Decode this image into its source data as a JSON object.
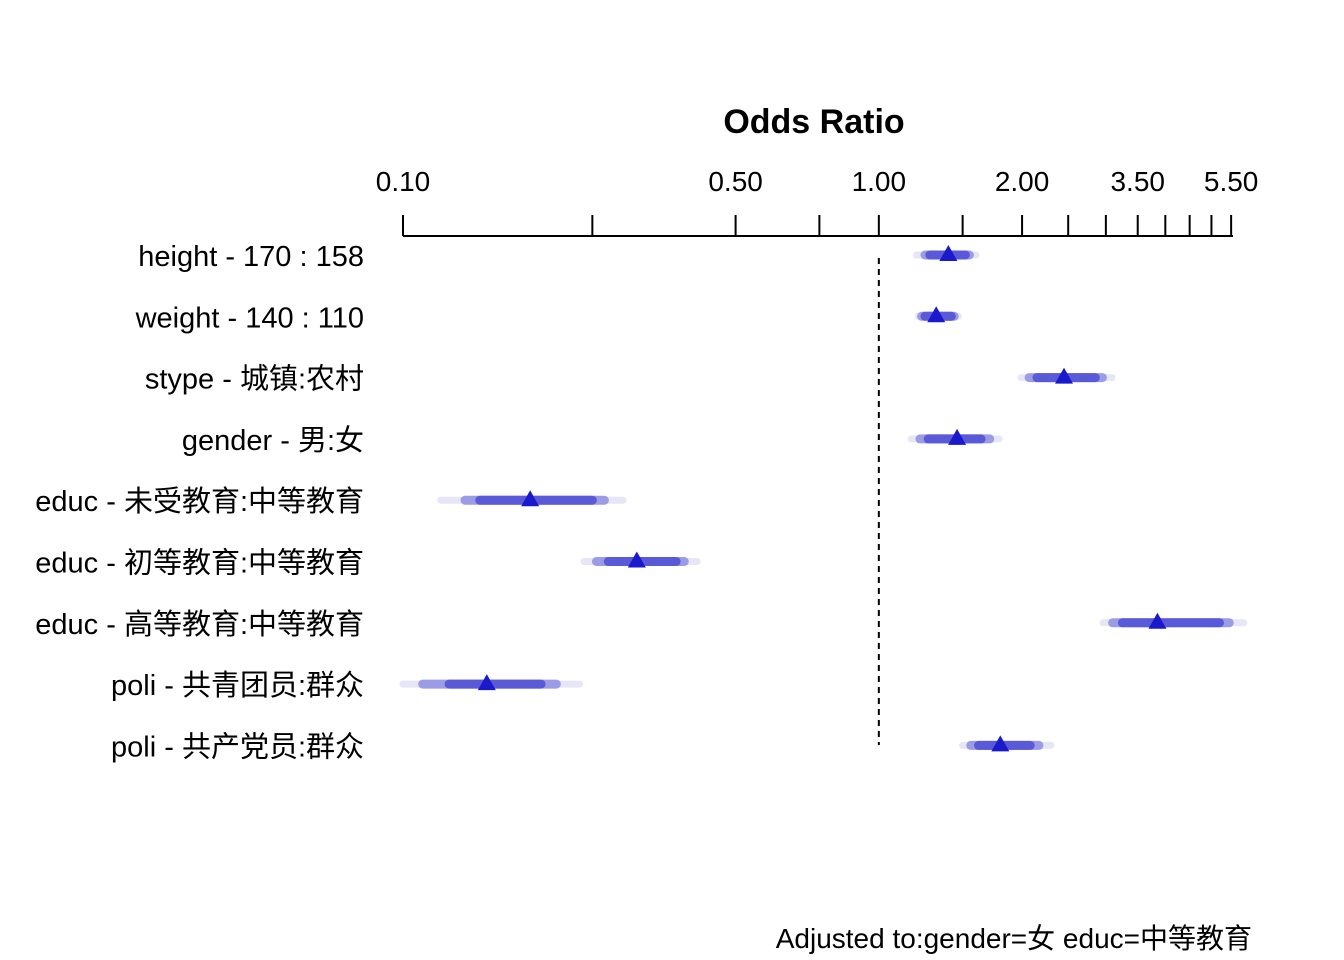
{
  "chart_data": {
    "type": "forest",
    "title": "Odds Ratio",
    "x_scale": "log",
    "xlim": [
      0.1,
      6.0
    ],
    "x_ticks": [
      0.1,
      0.25,
      0.5,
      0.75,
      1.0,
      1.5,
      2.0,
      2.5,
      3.0,
      3.5,
      4.0,
      4.5,
      5.0,
      5.5
    ],
    "x_tick_labels": [
      {
        "value": 0.1,
        "label": "0.10"
      },
      {
        "value": 0.5,
        "label": "0.50"
      },
      {
        "value": 1.0,
        "label": "1.00"
      },
      {
        "value": 2.0,
        "label": "2.00"
      },
      {
        "value": 3.5,
        "label": "3.50"
      },
      {
        "value": 5.5,
        "label": "5.50"
      }
    ],
    "reference_line": 1.0,
    "point_color": "#1a1acc",
    "band_colors": [
      "#e6e6f7",
      "#9b9be6",
      "#5a5ad9"
    ],
    "rows": [
      {
        "label_var": "height - ",
        "label_level": "170 : 158",
        "or": 1.4,
        "ci": [
          [
            1.2,
            1.6
          ],
          [
            1.25,
            1.55
          ],
          [
            1.28,
            1.52
          ]
        ]
      },
      {
        "label_var": "weight - ",
        "label_level": "140 : 110",
        "or": 1.32,
        "ci": [
          [
            1.21,
            1.47
          ],
          [
            1.23,
            1.44
          ],
          [
            1.25,
            1.42
          ]
        ]
      },
      {
        "label_var": "stype - ",
        "label_level": "城镇:农村",
        "or": 2.45,
        "ci": [
          [
            1.99,
            3.09
          ],
          [
            2.07,
            2.95
          ],
          [
            2.15,
            2.85
          ]
        ]
      },
      {
        "label_var": "gender - ",
        "label_level": "男:女",
        "or": 1.46,
        "ci": [
          [
            1.17,
            1.79
          ],
          [
            1.22,
            1.71
          ],
          [
            1.27,
            1.64
          ]
        ]
      },
      {
        "label_var": "educ - ",
        "label_level": "未受教育:中等教育",
        "or": 0.185,
        "ci": [
          [
            0.12,
            0.29
          ],
          [
            0.135,
            0.265
          ],
          [
            0.145,
            0.25
          ]
        ]
      },
      {
        "label_var": "educ - ",
        "label_level": "初等教育:中等教育",
        "or": 0.31,
        "ci": [
          [
            0.24,
            0.415
          ],
          [
            0.255,
            0.39
          ],
          [
            0.27,
            0.375
          ]
        ]
      },
      {
        "label_var": "educ - ",
        "label_level": "高等教育:中等教育",
        "or": 3.85,
        "ci": [
          [
            2.96,
            5.85
          ],
          [
            3.1,
            5.45
          ],
          [
            3.25,
            5.2
          ]
        ]
      },
      {
        "label_var": "poli - ",
        "label_level": "共青团员:群众",
        "or": 0.15,
        "ci": [
          [
            0.1,
            0.235
          ],
          [
            0.11,
            0.21
          ],
          [
            0.125,
            0.195
          ]
        ]
      },
      {
        "label_var": "poli - ",
        "label_level": "共产党员:群众",
        "or": 1.8,
        "ci": [
          [
            1.5,
            2.3
          ],
          [
            1.56,
            2.17
          ],
          [
            1.62,
            2.08
          ]
        ]
      }
    ],
    "footnote": "Adjusted to:gender=女 educ=中等教育"
  }
}
